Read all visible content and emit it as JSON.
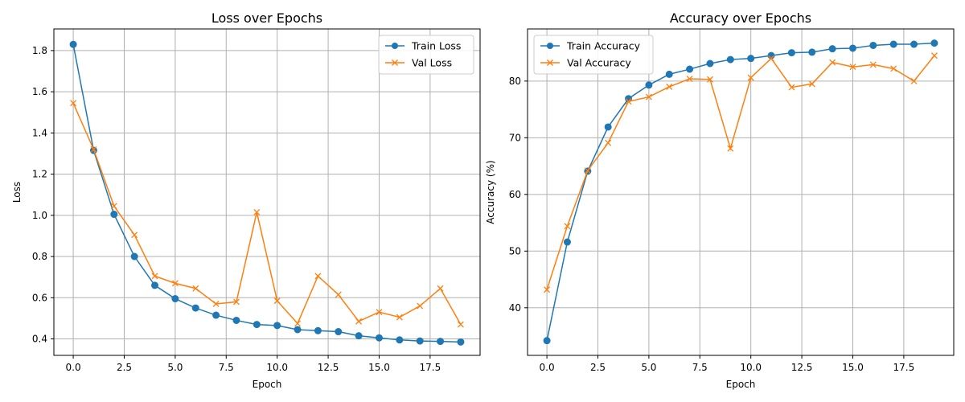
{
  "chart_data": [
    {
      "type": "line",
      "title": "Loss over Epochs",
      "xlabel": "Epoch",
      "ylabel": "Loss",
      "xlim": [
        -0.95,
        19.95
      ],
      "ylim": [
        0.32,
        1.905
      ],
      "xticks": [
        0.0,
        2.5,
        5.0,
        7.5,
        10.0,
        12.5,
        15.0,
        17.5
      ],
      "xtick_labels": [
        "0.0",
        "2.5",
        "5.0",
        "7.5",
        "10.0",
        "12.5",
        "15.0",
        "17.5"
      ],
      "yticks": [
        0.4,
        0.6,
        0.8,
        1.0,
        1.2,
        1.4,
        1.6,
        1.8
      ],
      "ytick_labels": [
        "0.4",
        "0.6",
        "0.8",
        "1.0",
        "1.2",
        "1.4",
        "1.6",
        "1.8"
      ],
      "grid": true,
      "legend_position": "top-right",
      "x": [
        0,
        1,
        2,
        3,
        4,
        5,
        6,
        7,
        8,
        9,
        10,
        11,
        12,
        13,
        14,
        15,
        16,
        17,
        18,
        19
      ],
      "series": [
        {
          "name": "Train Loss",
          "color": "#1f77b4",
          "marker": "circle",
          "values": [
            1.83,
            1.315,
            1.005,
            0.8,
            0.66,
            0.595,
            0.55,
            0.515,
            0.49,
            0.47,
            0.465,
            0.445,
            0.44,
            0.435,
            0.415,
            0.405,
            0.395,
            0.39,
            0.388,
            0.385
          ]
        },
        {
          "name": "Val Loss",
          "color": "#ff7f0e",
          "marker": "x",
          "values": [
            1.545,
            1.32,
            1.045,
            0.905,
            0.705,
            0.67,
            0.645,
            0.57,
            0.58,
            1.015,
            0.585,
            0.475,
            0.705,
            0.615,
            0.485,
            0.53,
            0.505,
            0.56,
            0.645,
            0.47
          ]
        }
      ]
    },
    {
      "type": "line",
      "title": "Accuracy over Epochs",
      "xlabel": "Epoch",
      "ylabel": "Accuracy (%)",
      "xlim": [
        -0.95,
        19.95
      ],
      "ylim": [
        31.6,
        89.2
      ],
      "xticks": [
        0.0,
        2.5,
        5.0,
        7.5,
        10.0,
        12.5,
        15.0,
        17.5
      ],
      "xtick_labels": [
        "0.0",
        "2.5",
        "5.0",
        "7.5",
        "10.0",
        "12.5",
        "15.0",
        "17.5"
      ],
      "yticks": [
        40,
        50,
        60,
        70,
        80
      ],
      "ytick_labels": [
        "40",
        "50",
        "60",
        "70",
        "80"
      ],
      "grid": true,
      "legend_position": "top-left",
      "x": [
        0,
        1,
        2,
        3,
        4,
        5,
        6,
        7,
        8,
        9,
        10,
        11,
        12,
        13,
        14,
        15,
        16,
        17,
        18,
        19
      ],
      "series": [
        {
          "name": "Train Accuracy",
          "color": "#1f77b4",
          "marker": "circle",
          "values": [
            34.2,
            51.6,
            64.1,
            71.9,
            76.9,
            79.3,
            81.2,
            82.1,
            83.1,
            83.8,
            84.0,
            84.5,
            85.0,
            85.1,
            85.7,
            85.8,
            86.3,
            86.5,
            86.5,
            86.7
          ]
        },
        {
          "name": "Val Accuracy",
          "color": "#ff7f0e",
          "marker": "x",
          "values": [
            43.2,
            54.4,
            64.2,
            69.1,
            76.4,
            77.2,
            79.0,
            80.4,
            80.3,
            68.1,
            80.6,
            84.0,
            78.9,
            79.5,
            83.3,
            82.5,
            82.9,
            82.2,
            80.0,
            84.5
          ]
        }
      ]
    }
  ]
}
